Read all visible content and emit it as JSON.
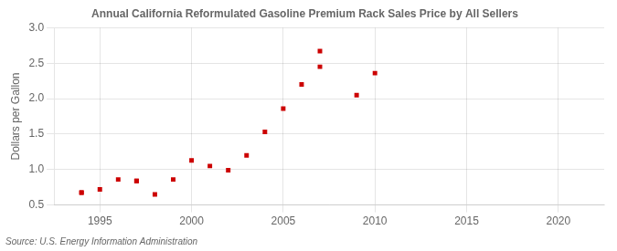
{
  "chart_data": {
    "type": "scatter",
    "title": "Annual California Reformulated Gasoline Premium Rack Sales Price by All Sellers",
    "y_label": "Dollars per Gallon",
    "annotation": "Source: U.S. Energy Information Administration",
    "x": [
      1994,
      1994,
      1995,
      1996,
      1997,
      1997,
      1998,
      1999,
      2000,
      2001,
      2002,
      2003,
      2004,
      2005,
      2006,
      2007,
      2007,
      2009,
      2010
    ],
    "values": [
      0.67,
      0.68,
      0.72,
      0.86,
      0.84,
      0.84,
      0.65,
      0.86,
      1.13,
      1.05,
      0.99,
      1.2,
      1.53,
      1.86,
      2.2,
      2.45,
      2.67,
      2.05,
      2.36
    ],
    "color": "#cc0000",
    "marker": "square",
    "xlim": [
      1992.5,
      2022.5
    ],
    "xticks": [
      1995,
      2000,
      2005,
      2010,
      2015,
      2020
    ],
    "ylim": [
      0.5,
      3.0
    ],
    "yticks": [
      0.5,
      {
        "value": 1.0,
        "label": "1.0"
      },
      1.5,
      {
        "value": 2.0,
        "label": "2.0"
      },
      2.5,
      {
        "value": 3.0,
        "label": "3.0"
      }
    ],
    "grid": true
  }
}
